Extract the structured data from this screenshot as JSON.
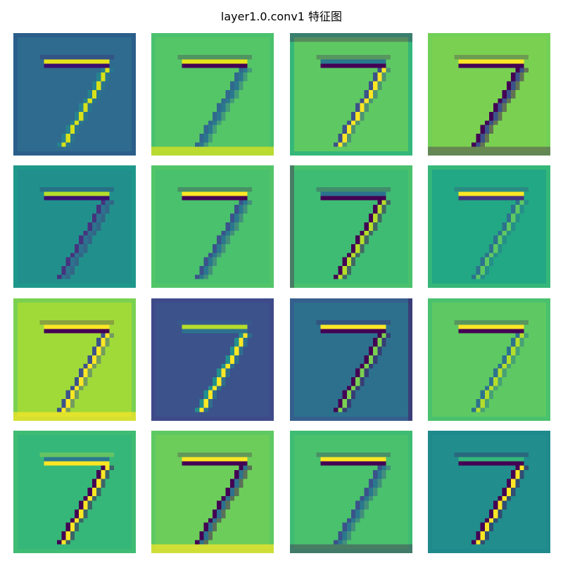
{
  "title": "layer1.0.conv1 特征图",
  "colormap": "viridis",
  "grid": {
    "rows": 4,
    "cols": 4
  },
  "digit": "7",
  "feature_maps": [
    {
      "channel": 0,
      "bg": "#2f6b8e",
      "border": "#2b5e8a",
      "bar_hi": "#e7e419",
      "bar_lo": "#3b0f70",
      "stem_hi": "#d8e219",
      "stem_lo": "#26828e",
      "edge": "left-light"
    },
    {
      "channel": 1,
      "bg": "#55c667",
      "border": "#4ac16d",
      "bar_hi": "#e7e419",
      "bar_lo": "#440154",
      "stem_hi": "#2a788e",
      "stem_lo": "#31688e",
      "edge": "bottom-light"
    },
    {
      "channel": 2,
      "bg": "#5ec962",
      "border": "#35b779",
      "bar_hi": "#2a788e",
      "bar_lo": "#440154",
      "stem_hi": "#fde725",
      "stem_lo": "#3b528b",
      "edge": "top-dark"
    },
    {
      "channel": 3,
      "bg": "#7ad151",
      "border": "#73d056",
      "bar_hi": "#fde725",
      "bar_lo": "#440154",
      "stem_hi": "#3b528b",
      "stem_lo": "#440154",
      "edge": "bottom-dark"
    },
    {
      "channel": 4,
      "bg": "#21908d",
      "border": "#1f988b",
      "bar_hi": "#b5de2b",
      "bar_lo": "#3b0f70",
      "stem_hi": "#2c728e",
      "stem_lo": "#46337e",
      "edge": "none"
    },
    {
      "channel": 5,
      "bg": "#4ac16d",
      "border": "#52c569",
      "bar_hi": "#fde725",
      "bar_lo": "#440154",
      "stem_hi": "#2a788e",
      "stem_lo": "#3b528b",
      "edge": "none"
    },
    {
      "channel": 6,
      "bg": "#3fbc73",
      "border": "#4ac16d",
      "bar_hi": "#2c728e",
      "bar_lo": "#440154",
      "stem_hi": "#b5de2b",
      "stem_lo": "#440154",
      "edge": "left-dark"
    },
    {
      "channel": 7,
      "bg": "#22a884",
      "border": "#35b779",
      "bar_hi": "#fde725",
      "bar_lo": "#46337e",
      "stem_hi": "#5ec962",
      "stem_lo": "#2c728e",
      "edge": "none"
    },
    {
      "channel": 8,
      "bg": "#a0da39",
      "border": "#7ad151",
      "bar_hi": "#fde725",
      "bar_lo": "#440154",
      "stem_hi": "#fde725",
      "stem_lo": "#3b528b",
      "edge": "bottom-light"
    },
    {
      "channel": 9,
      "bg": "#3b528b",
      "border": "#3e4a89",
      "bar_hi": "#b5de2b",
      "bar_lo": "#2c728e",
      "stem_hi": "#fde725",
      "stem_lo": "#21908d",
      "edge": "none"
    },
    {
      "channel": 10,
      "bg": "#2d708e",
      "border": "#355f8d",
      "bar_hi": "#fde725",
      "bar_lo": "#440154",
      "stem_hi": "#7ad151",
      "stem_lo": "#440154",
      "edge": "right-dark"
    },
    {
      "channel": 11,
      "bg": "#5ec962",
      "border": "#4ac16d",
      "bar_hi": "#fde725",
      "bar_lo": "#440154",
      "stem_hi": "#b5de2b",
      "stem_lo": "#2c728e",
      "edge": "none"
    },
    {
      "channel": 12,
      "bg": "#35b779",
      "border": "#3fbc73",
      "bar_hi": "#2a788e",
      "bar_lo": "#fde725",
      "stem_hi": "#fde725",
      "stem_lo": "#440154",
      "edge": "none"
    },
    {
      "channel": 13,
      "bg": "#6ccd5a",
      "border": "#5ec962",
      "bar_hi": "#fde725",
      "bar_lo": "#440154",
      "stem_hi": "#2c728e",
      "stem_lo": "#440154",
      "edge": "bottom-light"
    },
    {
      "channel": 14,
      "bg": "#4ac16d",
      "border": "#3fbc73",
      "bar_hi": "#fde725",
      "bar_lo": "#440154",
      "stem_hi": "#2a788e",
      "stem_lo": "#3b528b",
      "edge": "bottom-dark"
    },
    {
      "channel": 15,
      "bg": "#218d8d",
      "border": "#1f8a8c",
      "bar_hi": "#35b779",
      "bar_lo": "#440154",
      "stem_hi": "#fde725",
      "stem_lo": "#440154",
      "edge": "none"
    }
  ]
}
